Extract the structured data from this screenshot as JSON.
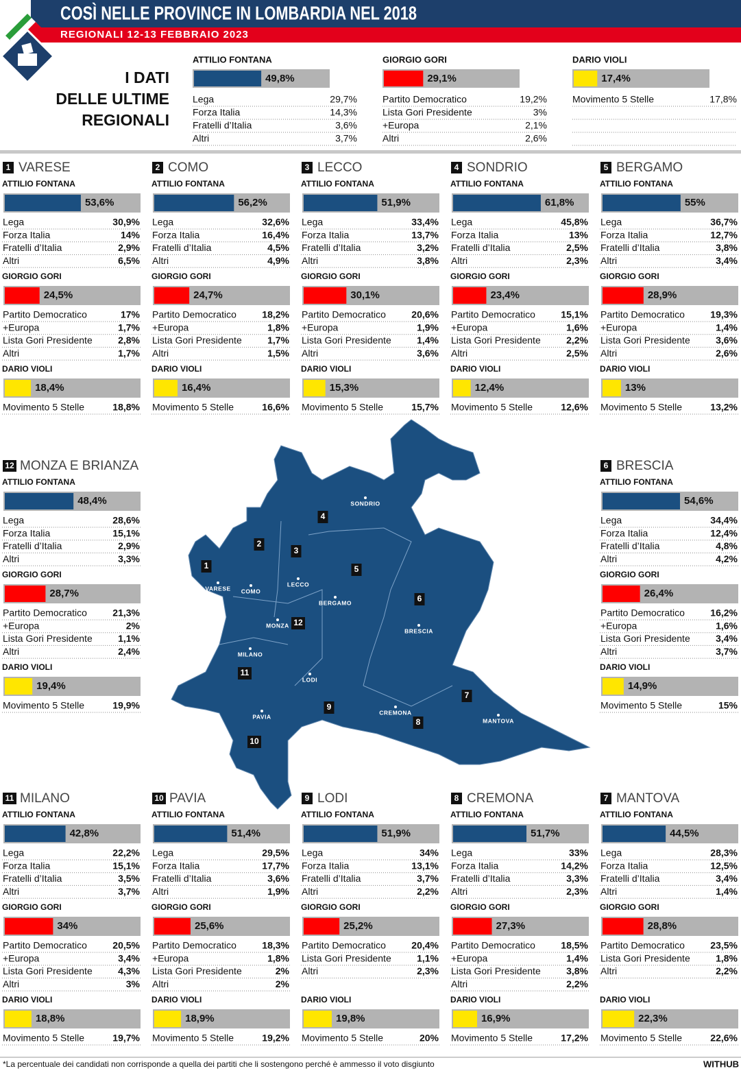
{
  "header": {
    "title": "COSÌ NELLE PROVINCE IN LOMBARDIA NEL 2018",
    "subtitle": "REGIONALI 12-13 FEBBRAIO 2023"
  },
  "summary": {
    "heading": [
      "I DATI",
      "DELLE ULTIME",
      "REGIONALI"
    ],
    "candidates": [
      {
        "name": "ATTILIO FONTANA",
        "value": 49.8,
        "label": "49,8%",
        "color": "#1b4f80",
        "parties": [
          [
            "Lega",
            "29,7%"
          ],
          [
            "Forza Italia",
            "14,3%"
          ],
          [
            "Fratelli d’Italia",
            "3,6%"
          ],
          [
            "Altri",
            "3,7%"
          ]
        ]
      },
      {
        "name": "GIORGIO GORI",
        "value": 29.1,
        "label": "29,1%",
        "color": "#ff0000",
        "parties": [
          [
            "Partito Democratico",
            "19,2%"
          ],
          [
            "Lista Gori Presidente",
            "3%"
          ],
          [
            "+Europa",
            "2,1%"
          ],
          [
            "Altri",
            "2,6%"
          ]
        ]
      },
      {
        "name": "DARIO VIOLI",
        "value": 17.4,
        "label": "17,4%",
        "color": "#ffe600",
        "parties": [
          [
            "Movimento 5 Stelle",
            "17,8%"
          ]
        ]
      }
    ]
  },
  "provinces": [
    {
      "number": "1",
      "name": "VARESE",
      "candidates": [
        {
          "name": "ATTILIO FONTANA",
          "value": 53.6,
          "label": "53,6%",
          "color": "#1b4f80",
          "parties": [
            [
              "Lega",
              "30,9%"
            ],
            [
              "Forza Italia",
              "14%"
            ],
            [
              "Fratelli d’Italia",
              "2,9%"
            ],
            [
              "Altri",
              "6,5%"
            ]
          ]
        },
        {
          "name": "GIORGIO GORI",
          "value": 24.5,
          "label": "24,5%",
          "color": "#ff0000",
          "parties": [
            [
              "Partito Democratico",
              "17%"
            ],
            [
              "+Europa",
              "1,7%"
            ],
            [
              "Lista Gori Presidente",
              "2,8%"
            ],
            [
              "Altri",
              "1,7%"
            ]
          ]
        },
        {
          "name": "DARIO VIOLI",
          "value": 18.4,
          "label": "18,4%",
          "color": "#ffe600",
          "parties": [
            [
              "Movimento 5 Stelle",
              "18,8%"
            ]
          ]
        }
      ]
    },
    {
      "number": "2",
      "name": "COMO",
      "candidates": [
        {
          "name": "ATTILIO FONTANA",
          "value": 56.2,
          "label": "56,2%",
          "color": "#1b4f80",
          "parties": [
            [
              "Lega",
              "32,6%"
            ],
            [
              "Forza Italia",
              "16,4%"
            ],
            [
              "Fratelli d’Italia",
              "4,5%"
            ],
            [
              "Altri",
              "4,9%"
            ]
          ]
        },
        {
          "name": "GIORGIO GORI",
          "value": 24.7,
          "label": "24,7%",
          "color": "#ff0000",
          "parties": [
            [
              "Partito Democratico",
              "18,2%"
            ],
            [
              "+Europa",
              "1,8%"
            ],
            [
              "Lista Gori Presidente",
              "1,7%"
            ],
            [
              "Altri",
              "1,5%"
            ]
          ]
        },
        {
          "name": "DARIO VIOLI",
          "value": 16.4,
          "label": "16,4%",
          "color": "#ffe600",
          "parties": [
            [
              "Movimento 5 Stelle",
              "16,6%"
            ]
          ]
        }
      ]
    },
    {
      "number": "3",
      "name": "LECCO",
      "candidates": [
        {
          "name": "ATTILIO FONTANA",
          "value": 51.9,
          "label": "51,9%",
          "color": "#1b4f80",
          "parties": [
            [
              "Lega",
              "33,4%"
            ],
            [
              "Forza Italia",
              "13,7%"
            ],
            [
              "Fratelli d’Italia",
              "3,2%"
            ],
            [
              "Altri",
              "3,8%"
            ]
          ]
        },
        {
          "name": "GIORGIO GORI",
          "value": 30.1,
          "label": "30,1%",
          "color": "#ff0000",
          "parties": [
            [
              "Partito Democratico",
              "20,6%"
            ],
            [
              "+Europa",
              "1,9%"
            ],
            [
              "Lista Gori Presidente",
              "1,4%"
            ],
            [
              "Altri",
              "3,6%"
            ]
          ]
        },
        {
          "name": "DARIO VIOLI",
          "value": 15.3,
          "label": "15,3%",
          "color": "#ffe600",
          "parties": [
            [
              "Movimento 5 Stelle",
              "15,7%"
            ]
          ]
        }
      ]
    },
    {
      "number": "4",
      "name": "SONDRIO",
      "candidates": [
        {
          "name": "ATTILIO FONTANA",
          "value": 61.8,
          "label": "61,8%",
          "color": "#1b4f80",
          "parties": [
            [
              "Lega",
              "45,8%"
            ],
            [
              "Forza Italia",
              "13%"
            ],
            [
              "Fratelli d’Italia",
              "2,5%"
            ],
            [
              "Altri",
              "2,3%"
            ]
          ]
        },
        {
          "name": "GIORGIO GORI",
          "value": 23.4,
          "label": "23,4%",
          "color": "#ff0000",
          "parties": [
            [
              "Partito Democratico",
              "15,1%"
            ],
            [
              "+Europa",
              "1,6%"
            ],
            [
              "Lista Gori Presidente",
              "2,2%"
            ],
            [
              "Altri",
              "2,5%"
            ]
          ]
        },
        {
          "name": "DARIO VIOLI",
          "value": 12.4,
          "label": "12,4%",
          "color": "#ffe600",
          "parties": [
            [
              "Movimento 5 Stelle",
              "12,6%"
            ]
          ]
        }
      ]
    },
    {
      "number": "5",
      "name": "BERGAMO",
      "candidates": [
        {
          "name": "ATTILIO FONTANA",
          "value": 55,
          "label": "55%",
          "color": "#1b4f80",
          "parties": [
            [
              "Lega",
              "36,7%"
            ],
            [
              "Forza Italia",
              "12,7%"
            ],
            [
              "Fratelli d’Italia",
              "3,8%"
            ],
            [
              "Altri",
              "3,4%"
            ]
          ]
        },
        {
          "name": "GIORGIO GORI",
          "value": 28.9,
          "label": "28,9%",
          "color": "#ff0000",
          "parties": [
            [
              "Partito Democratico",
              "19,3%"
            ],
            [
              "+Europa",
              "1,4%"
            ],
            [
              "Lista Gori Presidente",
              "3,6%"
            ],
            [
              "Altri",
              "2,6%"
            ]
          ]
        },
        {
          "name": "DARIO VIOLI",
          "value": 13,
          "label": "13%",
          "color": "#ffe600",
          "parties": [
            [
              "Movimento 5 Stelle",
              "13,2%"
            ]
          ]
        }
      ]
    },
    {
      "number": "12",
      "name": "MONZA E BRIANZA",
      "candidates": [
        {
          "name": "ATTILIO FONTANA",
          "value": 48.4,
          "label": "48,4%",
          "color": "#1b4f80",
          "parties": [
            [
              "Lega",
              "28,6%"
            ],
            [
              "Forza Italia",
              "15,1%"
            ],
            [
              "Fratelli d’Italia",
              "2,9%"
            ],
            [
              "Altri",
              "3,3%"
            ]
          ]
        },
        {
          "name": "GIORGIO GORI",
          "value": 28.7,
          "label": "28,7%",
          "color": "#ff0000",
          "parties": [
            [
              "Partito Democratico",
              "21,3%"
            ],
            [
              "+Europa",
              "2%"
            ],
            [
              "Lista Gori Presidente",
              "1,1%"
            ],
            [
              "Altri",
              "2,4%"
            ]
          ]
        },
        {
          "name": "DARIO VIOLI",
          "value": 19.4,
          "label": "19,4%",
          "color": "#ffe600",
          "parties": [
            [
              "Movimento 5 Stelle",
              "19,9%"
            ]
          ]
        }
      ]
    },
    {
      "number": "6",
      "name": "BRESCIA",
      "candidates": [
        {
          "name": "ATTILIO FONTANA",
          "value": 54.6,
          "label": "54,6%",
          "color": "#1b4f80",
          "parties": [
            [
              "Lega",
              "34,4%"
            ],
            [
              "Forza Italia",
              "12,4%"
            ],
            [
              "Fratelli d’Italia",
              "4,8%"
            ],
            [
              "Altri",
              "4,2%"
            ]
          ]
        },
        {
          "name": "GIORGIO GORI",
          "value": 26.4,
          "label": "26,4%",
          "color": "#ff0000",
          "parties": [
            [
              "Partito Democratico",
              "16,2%"
            ],
            [
              "+Europa",
              "1,6%"
            ],
            [
              "Lista Gori Presidente",
              "3,4%"
            ],
            [
              "Altri",
              "3,7%"
            ]
          ]
        },
        {
          "name": "DARIO VIOLI",
          "value": 14.9,
          "label": "14,9%",
          "color": "#ffe600",
          "parties": [
            [
              "Movimento 5 Stelle",
              "15%"
            ]
          ]
        }
      ]
    },
    {
      "number": "11",
      "name": "MILANO",
      "candidates": [
        {
          "name": "ATTILIO FONTANA",
          "value": 42.8,
          "label": "42,8%",
          "color": "#1b4f80",
          "parties": [
            [
              "Lega",
              "22,2%"
            ],
            [
              "Forza Italia",
              "15,1%"
            ],
            [
              "Fratelli d’Italia",
              "3,5%"
            ],
            [
              "Altri",
              "3,7%"
            ]
          ]
        },
        {
          "name": "GIORGIO GORI",
          "value": 34,
          "label": "34%",
          "color": "#ff0000",
          "parties": [
            [
              "Partito Democratico",
              "20,5%"
            ],
            [
              "+Europa",
              "3,4%"
            ],
            [
              "Lista Gori Presidente",
              "4,3%"
            ],
            [
              "Altri",
              "3%"
            ]
          ]
        },
        {
          "name": "DARIO VIOLI",
          "value": 18.8,
          "label": "18,8%",
          "color": "#ffe600",
          "parties": [
            [
              "Movimento 5 Stelle",
              "19,7%"
            ]
          ]
        }
      ]
    },
    {
      "number": "10",
      "name": "PAVIA",
      "candidates": [
        {
          "name": "ATTILIO FONTANA",
          "value": 51.4,
          "label": "51,4%",
          "color": "#1b4f80",
          "parties": [
            [
              "Lega",
              "29,5%"
            ],
            [
              "Forza Italia",
              "17,7%"
            ],
            [
              "Fratelli d’Italia",
              "3,6%"
            ],
            [
              "Altri",
              "1,9%"
            ]
          ]
        },
        {
          "name": "GIORGIO GORI",
          "value": 25.6,
          "label": "25,6%",
          "color": "#ff0000",
          "parties": [
            [
              "Partito Democratico",
              "18,3%"
            ],
            [
              "+Europa",
              "1,8%"
            ],
            [
              "Lista Gori Presidente",
              "2%"
            ],
            [
              "Altri",
              "2%"
            ]
          ]
        },
        {
          "name": "DARIO VIOLI",
          "value": 18.9,
          "label": "18,9%",
          "color": "#ffe600",
          "parties": [
            [
              "Movimento 5 Stelle",
              "19,2%"
            ]
          ]
        }
      ]
    },
    {
      "number": "9",
      "name": "LODI",
      "candidates": [
        {
          "name": "ATTILIO FONTANA",
          "value": 51.9,
          "label": "51,9%",
          "color": "#1b4f80",
          "parties": [
            [
              "Lega",
              "34%"
            ],
            [
              "Forza Italia",
              "13,1%"
            ],
            [
              "Fratelli d’Italia",
              "3,7%"
            ],
            [
              "Altri",
              "2,2%"
            ]
          ]
        },
        {
          "name": "GIORGIO GORI",
          "value": 25.2,
          "label": "25,2%",
          "color": "#ff0000",
          "parties": [
            [
              "Partito Democratico",
              "20,4%"
            ],
            [
              "Lista Gori Presidente",
              "1,1%"
            ],
            [
              "Altri",
              "2,3%"
            ]
          ]
        },
        {
          "name": "DARIO VIOLI",
          "value": 19.8,
          "label": "19,8%",
          "color": "#ffe600",
          "parties": [
            [
              "Movimento 5 Stelle",
              "20%"
            ]
          ]
        }
      ]
    },
    {
      "number": "8",
      "name": "CREMONA",
      "candidates": [
        {
          "name": "ATTILIO FONTANA",
          "value": 51.7,
          "label": "51,7%",
          "color": "#1b4f80",
          "parties": [
            [
              "Lega",
              "33%"
            ],
            [
              "Forza Italia",
              "14,2%"
            ],
            [
              "Fratelli d’Italia",
              "3,3%"
            ],
            [
              "Altri",
              "2,3%"
            ]
          ]
        },
        {
          "name": "GIORGIO GORI",
          "value": 27.3,
          "label": "27,3%",
          "color": "#ff0000",
          "parties": [
            [
              "Partito Democratico",
              "18,5%"
            ],
            [
              "+Europa",
              "1,4%"
            ],
            [
              "Lista Gori Presidente",
              "3,8%"
            ],
            [
              "Altri",
              "2,2%"
            ]
          ]
        },
        {
          "name": "DARIO VIOLI",
          "value": 16.9,
          "label": "16,9%",
          "color": "#ffe600",
          "parties": [
            [
              "Movimento 5 Stelle",
              "17,2%"
            ]
          ]
        }
      ]
    },
    {
      "number": "7",
      "name": "MANTOVA",
      "candidates": [
        {
          "name": "ATTILIO FONTANA",
          "value": 44.5,
          "label": "44,5%",
          "color": "#1b4f80",
          "parties": [
            [
              "Lega",
              "28,3%"
            ],
            [
              "Forza Italia",
              "12,5%"
            ],
            [
              "Fratelli d’Italia",
              "3,4%"
            ],
            [
              "Altri",
              "1,4%"
            ]
          ]
        },
        {
          "name": "GIORGIO GORI",
          "value": 28.8,
          "label": "28,8%",
          "color": "#ff0000",
          "parties": [
            [
              "Partito Democratico",
              "23,5%"
            ],
            [
              "Lista Gori Presidente",
              "1,8%"
            ],
            [
              "Altri",
              "2,2%"
            ]
          ]
        },
        {
          "name": "DARIO VIOLI",
          "value": 22.3,
          "label": "22,3%",
          "color": "#ffe600",
          "parties": [
            [
              "Movimento 5 Stelle",
              "22,6%"
            ]
          ]
        }
      ]
    }
  ],
  "map": {
    "cities": [
      "VARESE",
      "COMO",
      "LECCO",
      "SONDRIO",
      "BERGAMO",
      "BRESCIA",
      "MANTOVA",
      "CREMONA",
      "LODI",
      "PAVIA",
      "MILANO",
      "MONZA"
    ]
  },
  "footer": {
    "note": "*La percentuale dei candidati non corrisponde a quella dei partiti che li sostengono perché è ammesso il voto disgiunto",
    "brand": "WITHUB"
  }
}
